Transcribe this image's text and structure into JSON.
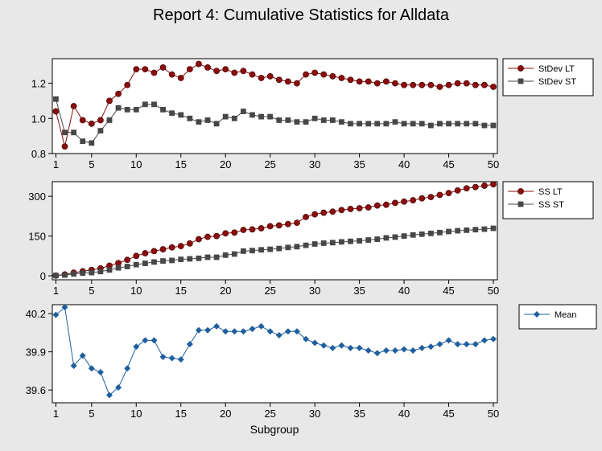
{
  "title": "Report 4: Cumulative Statistics for Alldata",
  "xlabel": "Subgroup",
  "colors": {
    "red": "#8b0d0d",
    "gray": "#474747",
    "blue": "#1f5f9e",
    "background": "#e8e8e8",
    "plot_bg": "#ffffff"
  },
  "chart_data": [
    {
      "type": "line",
      "x": [
        1,
        2,
        3,
        4,
        5,
        6,
        7,
        8,
        9,
        10,
        11,
        12,
        13,
        14,
        15,
        16,
        17,
        18,
        19,
        20,
        21,
        22,
        23,
        24,
        25,
        26,
        27,
        28,
        29,
        30,
        31,
        32,
        33,
        34,
        35,
        36,
        37,
        38,
        39,
        40,
        41,
        42,
        43,
        44,
        45,
        46,
        47,
        48,
        49,
        50
      ],
      "ylim": [
        0.8,
        1.34
      ],
      "yticks": [
        0.8,
        1.0,
        1.2
      ],
      "ytick_labels": [
        "0.8",
        "1.0",
        "1.2"
      ],
      "xticks": [
        1,
        5,
        10,
        15,
        20,
        25,
        30,
        35,
        40,
        45,
        50
      ],
      "legend_position": "right",
      "series": [
        {
          "name": "StDev LT",
          "marker": "circle",
          "color": "#8b0d0d",
          "values": [
            1.04,
            0.84,
            1.07,
            0.99,
            0.97,
            0.99,
            1.1,
            1.14,
            1.19,
            1.28,
            1.28,
            1.26,
            1.29,
            1.25,
            1.23,
            1.28,
            1.31,
            1.29,
            1.27,
            1.28,
            1.26,
            1.27,
            1.25,
            1.23,
            1.24,
            1.22,
            1.21,
            1.2,
            1.25,
            1.26,
            1.25,
            1.24,
            1.23,
            1.22,
            1.21,
            1.21,
            1.2,
            1.21,
            1.2,
            1.19,
            1.19,
            1.19,
            1.19,
            1.18,
            1.19,
            1.2,
            1.2,
            1.19,
            1.19,
            1.18
          ]
        },
        {
          "name": "StDev ST",
          "marker": "square",
          "color": "#474747",
          "values": [
            1.11,
            0.92,
            0.92,
            0.87,
            0.86,
            0.93,
            0.99,
            1.06,
            1.05,
            1.05,
            1.08,
            1.08,
            1.05,
            1.03,
            1.02,
            1.0,
            0.98,
            0.99,
            0.97,
            1.01,
            1.0,
            1.04,
            1.02,
            1.01,
            1.01,
            0.99,
            0.99,
            0.98,
            0.98,
            1.0,
            0.99,
            0.99,
            0.98,
            0.97,
            0.97,
            0.97,
            0.97,
            0.97,
            0.98,
            0.97,
            0.97,
            0.97,
            0.96,
            0.97,
            0.97,
            0.97,
            0.97,
            0.97,
            0.96,
            0.96
          ]
        }
      ]
    },
    {
      "type": "line",
      "x": [
        1,
        2,
        3,
        4,
        5,
        6,
        7,
        8,
        9,
        10,
        11,
        12,
        13,
        14,
        15,
        16,
        17,
        18,
        19,
        20,
        21,
        22,
        23,
        24,
        25,
        26,
        27,
        28,
        29,
        30,
        31,
        32,
        33,
        34,
        35,
        36,
        37,
        38,
        39,
        40,
        41,
        42,
        43,
        44,
        45,
        46,
        47,
        48,
        49,
        50
      ],
      "ylim": [
        -15,
        355
      ],
      "yticks": [
        0,
        150,
        300
      ],
      "ytick_labels": [
        "0",
        "150",
        "300"
      ],
      "xticks": [
        1,
        5,
        10,
        15,
        20,
        25,
        30,
        35,
        40,
        45,
        50
      ],
      "legend_position": "right",
      "series": [
        {
          "name": "SS LT",
          "marker": "circle",
          "color": "#8b0d0d",
          "values": [
            1,
            5,
            12,
            17,
            22,
            28,
            38,
            48,
            60,
            75,
            85,
            93,
            100,
            107,
            112,
            122,
            138,
            147,
            150,
            160,
            163,
            173,
            175,
            179,
            187,
            190,
            195,
            200,
            222,
            232,
            238,
            242,
            248,
            252,
            255,
            258,
            265,
            268,
            275,
            280,
            285,
            292,
            297,
            305,
            312,
            322,
            330,
            335,
            340,
            345
          ]
        },
        {
          "name": "SS ST",
          "marker": "square",
          "color": "#474747",
          "values": [
            1,
            3,
            7,
            10,
            12,
            16,
            22,
            30,
            35,
            42,
            47,
            52,
            56,
            58,
            62,
            64,
            66,
            70,
            70,
            78,
            82,
            93,
            95,
            98,
            100,
            103,
            107,
            110,
            115,
            120,
            123,
            125,
            128,
            130,
            132,
            135,
            138,
            143,
            146,
            150,
            154,
            157,
            160,
            163,
            167,
            170,
            172,
            174,
            176,
            179
          ]
        }
      ]
    },
    {
      "type": "line",
      "x": [
        1,
        2,
        3,
        4,
        5,
        6,
        7,
        8,
        9,
        10,
        11,
        12,
        13,
        14,
        15,
        16,
        17,
        18,
        19,
        20,
        21,
        22,
        23,
        24,
        25,
        26,
        27,
        28,
        29,
        30,
        31,
        32,
        33,
        34,
        35,
        36,
        37,
        38,
        39,
        40,
        41,
        42,
        43,
        44,
        45,
        46,
        47,
        48,
        49,
        50
      ],
      "ylim": [
        39.5,
        40.27
      ],
      "yticks": [
        39.6,
        39.9,
        40.2
      ],
      "ytick_labels": [
        "39.6",
        "39.9",
        "40.2"
      ],
      "xticks": [
        1,
        5,
        10,
        15,
        20,
        25,
        30,
        35,
        40,
        45,
        50
      ],
      "legend_position": "right",
      "series": [
        {
          "name": "Mean",
          "marker": "diamond",
          "color": "#1f5f9e",
          "values": [
            40.19,
            40.25,
            39.79,
            39.87,
            39.77,
            39.74,
            39.56,
            39.62,
            39.77,
            39.94,
            39.99,
            39.99,
            39.86,
            39.85,
            39.84,
            39.96,
            40.07,
            40.07,
            40.1,
            40.06,
            40.06,
            40.06,
            40.08,
            40.1,
            40.06,
            40.03,
            40.06,
            40.06,
            40.0,
            39.97,
            39.95,
            39.93,
            39.95,
            39.93,
            39.93,
            39.91,
            39.89,
            39.91,
            39.91,
            39.92,
            39.91,
            39.93,
            39.94,
            39.96,
            39.99,
            39.96,
            39.96,
            39.96,
            39.99,
            40.0
          ]
        }
      ]
    }
  ]
}
